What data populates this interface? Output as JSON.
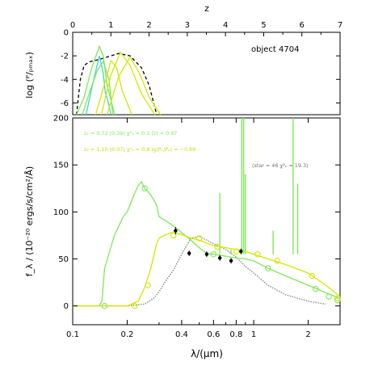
{
  "colors": {
    "green": "#7fe85a",
    "yellow": "#d6e600",
    "cyan": "#3ad6d0",
    "gray": "#8a8a8a",
    "black": "#000000"
  },
  "chart_data": [
    {
      "type": "line",
      "name": "top-panel",
      "title": "",
      "top_axis_label": "z",
      "top_ticks": [
        "0",
        "1",
        "2",
        "3",
        "4",
        "5",
        "6",
        "7"
      ],
      "xlim": [
        0,
        7
      ],
      "ylim": [
        -7,
        0
      ],
      "ylabel": "log (ᴾ/ₚₘₐₓ)",
      "yticks": [
        "0",
        "-2",
        "-4",
        "-6"
      ],
      "annotation": "object 4704",
      "series": [
        {
          "style": "black-dashed",
          "x": [
            0.1,
            0.2,
            0.3,
            0.45,
            0.7,
            0.9,
            1.2,
            1.5,
            1.8,
            2.0,
            2.2
          ],
          "y": [
            -7,
            -4,
            -2.8,
            -2.5,
            -2.3,
            -2.1,
            -1.8,
            -2.0,
            -3.0,
            -4.5,
            -7
          ]
        },
        {
          "style": "green",
          "x": [
            0.1,
            0.3,
            0.5,
            0.7,
            0.8,
            0.9,
            1.1
          ],
          "y": [
            -7,
            -5.5,
            -3.0,
            -1.2,
            -2.0,
            -4.5,
            -7
          ]
        },
        {
          "style": "cyan",
          "x": [
            0.35,
            0.55,
            0.7,
            0.8,
            0.85,
            0.95,
            1.0
          ],
          "y": [
            -7,
            -4,
            -2.0,
            -3.5,
            -5.0,
            -6.2,
            -7
          ]
        },
        {
          "style": "green",
          "x": [
            0.25,
            0.45,
            0.65,
            0.8,
            0.95,
            1.05
          ],
          "y": [
            -7,
            -5.0,
            -3.2,
            -2.5,
            -4.0,
            -7
          ]
        },
        {
          "style": "yellow",
          "x": [
            0.6,
            0.85,
            1.0,
            1.15,
            1.3,
            1.55
          ],
          "y": [
            -7,
            -4.2,
            -2.4,
            -3.0,
            -5.0,
            -7
          ]
        },
        {
          "style": "yellow",
          "x": [
            0.75,
            1.0,
            1.25,
            1.5,
            1.8,
            2.15
          ],
          "y": [
            -7,
            -3.6,
            -1.7,
            -2.8,
            -5.2,
            -7
          ]
        },
        {
          "style": "yellow",
          "x": [
            0.9,
            1.2,
            1.5,
            1.75,
            2.0,
            2.3
          ],
          "y": [
            -7,
            -3.8,
            -2.1,
            -3.5,
            -5.5,
            -7
          ]
        }
      ]
    },
    {
      "type": "line",
      "name": "bottom-panel",
      "xlabel": "λ/(μm)",
      "ylabel": "f_λ / (10⁻²⁰ ergs/s/cm²/Å)",
      "xscale": "log",
      "xlim": [
        0.1,
        3.0
      ],
      "ylim": [
        -20,
        200
      ],
      "xticks": [
        0.1,
        0.2,
        0.4,
        0.6,
        0.8,
        1,
        2
      ],
      "xtick_labels": [
        "0.1",
        "0.2",
        "0.4",
        "0.6",
        "0.8",
        "1",
        "2"
      ],
      "yticks": [
        0,
        50,
        100,
        150,
        200
      ],
      "ytick_labels": [
        "0",
        "50",
        "100",
        "150",
        "200"
      ],
      "annotations": {
        "green_line1": "z₁ = 0.72 (0.39)   χ²ᵥ = 0.1   ⟨z⟩ = 0.97",
        "yellow_line2": "z₂ = 1.10 (0.07)   χ²ᵥ = 0.8   lg(P₁/P₂) = −0.69",
        "gray_line": "(star = 46   χ²ᵥ = 19.3)"
      },
      "series": [
        {
          "name": "",
          "style": "green",
          "x": [
            0.1,
            0.12,
            0.14,
            0.145,
            0.15,
            0.17,
            0.19,
            0.2,
            0.22,
            0.23,
            0.24,
            0.25,
            0.27,
            0.29,
            0.3,
            0.33,
            0.36,
            0.4,
            0.45,
            0.5,
            0.55,
            0.6,
            0.7,
            0.8,
            0.9,
            1.0,
            1.2,
            1.5,
            2.0,
            2.5,
            3.0
          ],
          "y": [
            0,
            0,
            0,
            5,
            40,
            75,
            95,
            100,
            120,
            128,
            132,
            125,
            118,
            108,
            95,
            90,
            85,
            78,
            70,
            62,
            56,
            55,
            53,
            51,
            50,
            48,
            40,
            32,
            22,
            14,
            8
          ]
        },
        {
          "name": "",
          "style": "yellow",
          "x": [
            0.1,
            0.2,
            0.23,
            0.25,
            0.27,
            0.29,
            0.3,
            0.32,
            0.35,
            0.4,
            0.45,
            0.5,
            0.6,
            0.7,
            0.8,
            0.9,
            1.0,
            1.2,
            1.5,
            2.0,
            2.5,
            3.0
          ],
          "y": [
            0,
            0,
            5,
            20,
            40,
            65,
            72,
            75,
            78,
            76,
            72,
            70,
            64,
            62,
            60,
            58,
            55,
            50,
            44,
            35,
            22,
            10
          ]
        },
        {
          "name": "",
          "style": "gray-dotted",
          "x": [
            0.1,
            0.2,
            0.25,
            0.28,
            0.3,
            0.33,
            0.36,
            0.4,
            0.45,
            0.5,
            0.55,
            0.6,
            0.7,
            0.8,
            0.9,
            1.0,
            1.2,
            1.5,
            2.0,
            2.5
          ],
          "y": [
            0,
            0,
            2,
            8,
            15,
            28,
            38,
            55,
            72,
            74,
            70,
            66,
            60,
            52,
            42,
            35,
            22,
            12,
            5,
            2
          ]
        }
      ],
      "green_emission_lines": [
        {
          "x": 0.65,
          "y": 120
        },
        {
          "x": 0.75,
          "y": 60
        },
        {
          "x": 0.86,
          "y": 200
        },
        {
          "x": 0.88,
          "y": 200
        },
        {
          "x": 0.9,
          "y": 140
        },
        {
          "x": 1.28,
          "y": 80
        },
        {
          "x": 1.65,
          "y": 200
        },
        {
          "x": 1.75,
          "y": 130
        }
      ],
      "green_markers": {
        "x": [
          0.15,
          0.25,
          0.6,
          1.2,
          2.2,
          2.6,
          2.9
        ],
        "y": [
          0,
          125,
          55,
          40,
          18,
          10,
          6
        ]
      },
      "yellow_markers": {
        "x": [
          0.22,
          0.26,
          0.36,
          0.5,
          0.63,
          0.8,
          1.05,
          1.35,
          2.1,
          2.9
        ],
        "y": [
          0,
          22,
          75,
          72,
          63,
          58,
          55,
          48,
          32,
          8
        ]
      },
      "black_points": [
        {
          "x": 0.37,
          "y": 80,
          "err": 4
        },
        {
          "x": 0.44,
          "y": 56,
          "err": 3
        },
        {
          "x": 0.55,
          "y": 55,
          "err": 3
        },
        {
          "x": 0.65,
          "y": 51,
          "err": 3
        },
        {
          "x": 0.75,
          "y": 48,
          "err": 3
        },
        {
          "x": 0.85,
          "y": 58,
          "err": 3
        }
      ]
    }
  ]
}
